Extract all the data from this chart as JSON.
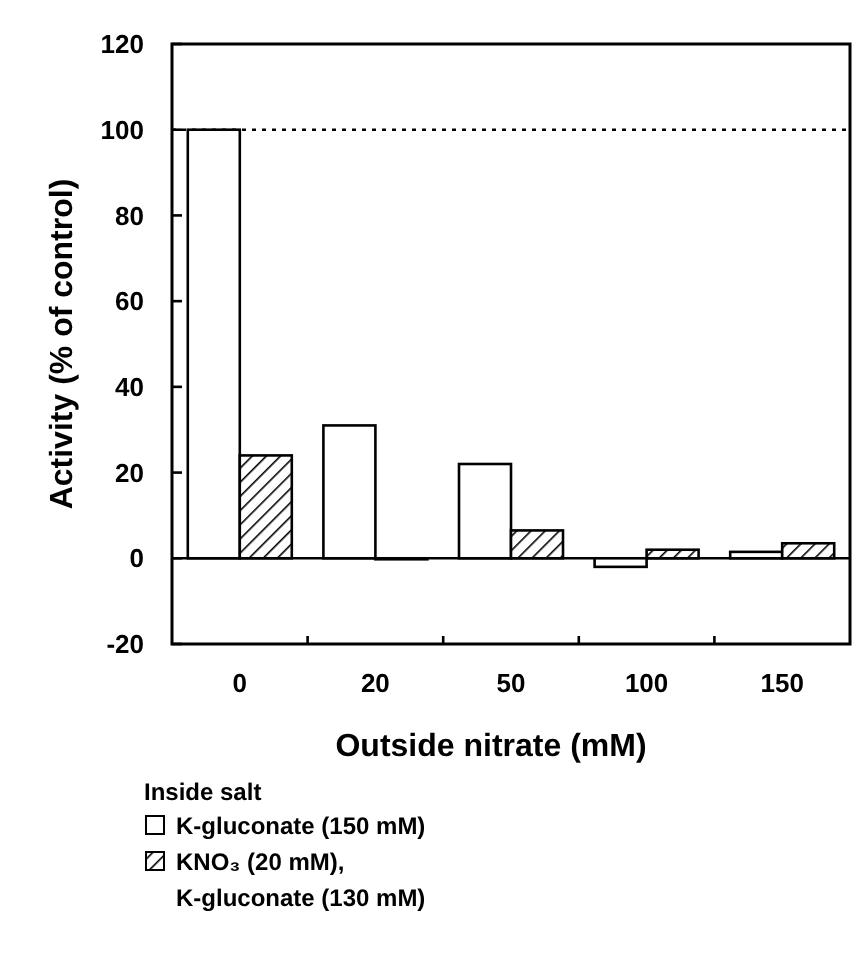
{
  "chart_data": {
    "type": "bar",
    "xlabel": "Outside nitrate (mM)",
    "ylabel": "Activity (% of control)",
    "legend_title": "Inside salt",
    "categories": [
      "0",
      "20",
      "50",
      "100",
      "150"
    ],
    "series": [
      {
        "name": "K-gluconate (150 mM)",
        "color": "#ffffff",
        "values": [
          100,
          31,
          22,
          -2,
          1.5
        ]
      },
      {
        "name": "KNO₃ (20 mM), K-gluconate (130 mM)",
        "color": "#000000",
        "values": [
          24,
          0,
          6.5,
          2,
          3.5
        ]
      }
    ],
    "ylim": [
      -20,
      120
    ],
    "yticks": [
      -20,
      0,
      20,
      40,
      60,
      80,
      100,
      120
    ],
    "ref_lines": [
      {
        "axis": "y",
        "value": 100,
        "line_style": "dotted"
      }
    ],
    "legend": "bottom",
    "grid": false
  }
}
